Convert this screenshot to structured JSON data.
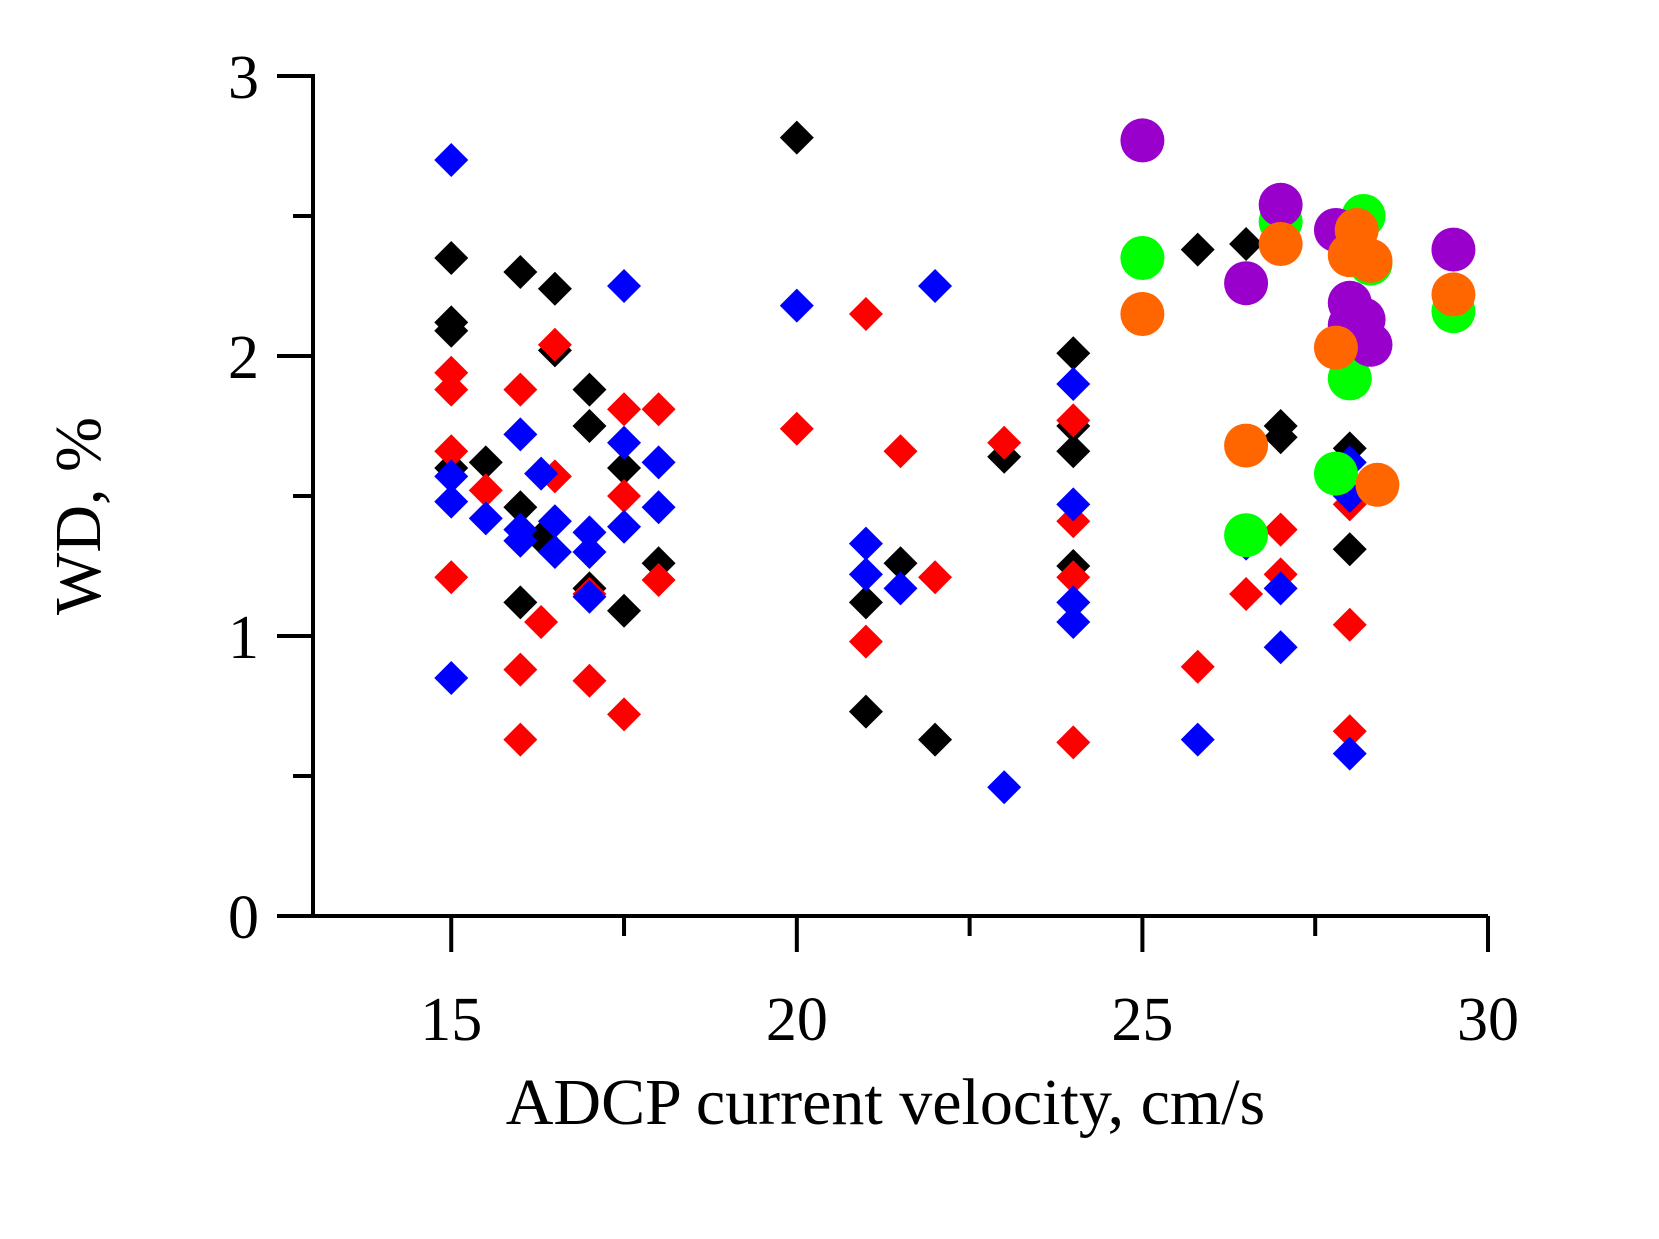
{
  "chart_data": {
    "type": "scatter",
    "title": "",
    "xlabel": "ADCP current velocity, cm/s",
    "ylabel": "WD, %",
    "xlim": [
      13,
      30
    ],
    "ylim": [
      0,
      3
    ],
    "x_ticks": [
      15,
      20,
      25,
      30
    ],
    "y_ticks": [
      0,
      1,
      2,
      3
    ],
    "grid": false,
    "legend": "none",
    "series": [
      {
        "marker": "diamond",
        "color": "#000000",
        "points": [
          [
            15,
            2.35
          ],
          [
            15,
            2.12
          ],
          [
            15,
            2.09
          ],
          [
            15,
            1.6
          ],
          [
            15.5,
            1.62
          ],
          [
            16,
            2.3
          ],
          [
            16,
            1.46
          ],
          [
            16,
            1.12
          ],
          [
            16.3,
            1.35
          ],
          [
            16.5,
            2.24
          ],
          [
            16.5,
            2.02
          ],
          [
            17,
            1.88
          ],
          [
            17,
            1.75
          ],
          [
            17,
            1.17
          ],
          [
            17.5,
            1.6
          ],
          [
            17.5,
            1.09
          ],
          [
            18,
            1.26
          ],
          [
            20,
            2.78
          ],
          [
            21,
            1.12
          ],
          [
            21,
            0.73
          ],
          [
            21.5,
            1.26
          ],
          [
            22,
            0.63
          ],
          [
            23,
            1.64
          ],
          [
            24,
            2.01
          ],
          [
            24,
            1.75
          ],
          [
            24,
            1.66
          ],
          [
            24,
            1.25
          ],
          [
            25.8,
            2.38
          ],
          [
            26.5,
            2.4
          ],
          [
            27,
            1.75
          ],
          [
            27,
            1.71
          ],
          [
            28,
            1.67
          ],
          [
            28,
            1.31
          ]
        ]
      },
      {
        "marker": "diamond",
        "color": "#ff0000",
        "points": [
          [
            15,
            1.94
          ],
          [
            15,
            1.88
          ],
          [
            15,
            1.66
          ],
          [
            15,
            1.21
          ],
          [
            15.5,
            1.52
          ],
          [
            16,
            1.88
          ],
          [
            16,
            0.88
          ],
          [
            16,
            0.63
          ],
          [
            16.3,
            1.05
          ],
          [
            16.5,
            2.04
          ],
          [
            16.5,
            1.57
          ],
          [
            17,
            1.15
          ],
          [
            17,
            0.84
          ],
          [
            17.5,
            1.81
          ],
          [
            17.5,
            1.5
          ],
          [
            17.5,
            0.72
          ],
          [
            18,
            1.81
          ],
          [
            18,
            1.2
          ],
          [
            20,
            1.74
          ],
          [
            21,
            2.15
          ],
          [
            21,
            0.98
          ],
          [
            21.5,
            1.66
          ],
          [
            22,
            1.21
          ],
          [
            23,
            1.69
          ],
          [
            24,
            1.77
          ],
          [
            24,
            1.41
          ],
          [
            24,
            1.21
          ],
          [
            24,
            0.62
          ],
          [
            25.8,
            0.89
          ],
          [
            26.5,
            1.15
          ],
          [
            27,
            1.38
          ],
          [
            27,
            1.22
          ],
          [
            28,
            1.47
          ],
          [
            28,
            1.04
          ],
          [
            28,
            0.66
          ]
        ]
      },
      {
        "marker": "diamond",
        "color": "#0000ff",
        "points": [
          [
            15,
            2.7
          ],
          [
            15,
            1.57
          ],
          [
            15,
            1.48
          ],
          [
            15,
            0.85
          ],
          [
            15.5,
            1.42
          ],
          [
            16,
            1.72
          ],
          [
            16,
            1.38
          ],
          [
            16,
            1.34
          ],
          [
            16.3,
            1.58
          ],
          [
            16.5,
            1.41
          ],
          [
            16.5,
            1.3
          ],
          [
            17,
            1.37
          ],
          [
            17,
            1.3
          ],
          [
            17,
            1.14
          ],
          [
            17.5,
            2.25
          ],
          [
            17.5,
            1.69
          ],
          [
            17.5,
            1.39
          ],
          [
            18,
            1.62
          ],
          [
            18,
            1.46
          ],
          [
            20,
            2.18
          ],
          [
            21,
            1.33
          ],
          [
            21,
            1.22
          ],
          [
            21.5,
            1.17
          ],
          [
            22,
            2.25
          ],
          [
            23,
            0.46
          ],
          [
            24,
            1.9
          ],
          [
            24,
            1.47
          ],
          [
            24,
            1.12
          ],
          [
            24,
            1.05
          ],
          [
            25.8,
            0.63
          ],
          [
            26.5,
            1.33
          ],
          [
            27,
            1.17
          ],
          [
            27,
            0.96
          ],
          [
            28,
            1.62
          ],
          [
            28,
            1.5
          ],
          [
            28,
            0.58
          ]
        ]
      },
      {
        "marker": "circle",
        "color": "#00ff00",
        "points": [
          [
            25,
            2.35
          ],
          [
            26.5,
            1.36
          ],
          [
            27,
            2.48
          ],
          [
            27.8,
            1.58
          ],
          [
            28,
            1.92
          ],
          [
            28.2,
            2.5
          ],
          [
            28.3,
            2.33
          ],
          [
            29.5,
            2.16
          ]
        ]
      },
      {
        "marker": "circle",
        "color": "#9900cc",
        "points": [
          [
            25,
            2.77
          ],
          [
            26.5,
            2.26
          ],
          [
            27,
            2.54
          ],
          [
            27.8,
            2.45
          ],
          [
            28,
            2.19
          ],
          [
            28,
            2.11
          ],
          [
            28.2,
            2.13
          ],
          [
            28.3,
            2.04
          ],
          [
            29.5,
            2.38
          ]
        ]
      },
      {
        "marker": "circle",
        "color": "#ff6600",
        "points": [
          [
            25,
            2.15
          ],
          [
            26.5,
            1.68
          ],
          [
            27,
            2.4
          ],
          [
            27.8,
            2.03
          ],
          [
            28,
            2.36
          ],
          [
            28.1,
            2.45
          ],
          [
            28.3,
            2.34
          ],
          [
            28.4,
            1.54
          ],
          [
            29.5,
            2.22
          ]
        ]
      }
    ]
  }
}
